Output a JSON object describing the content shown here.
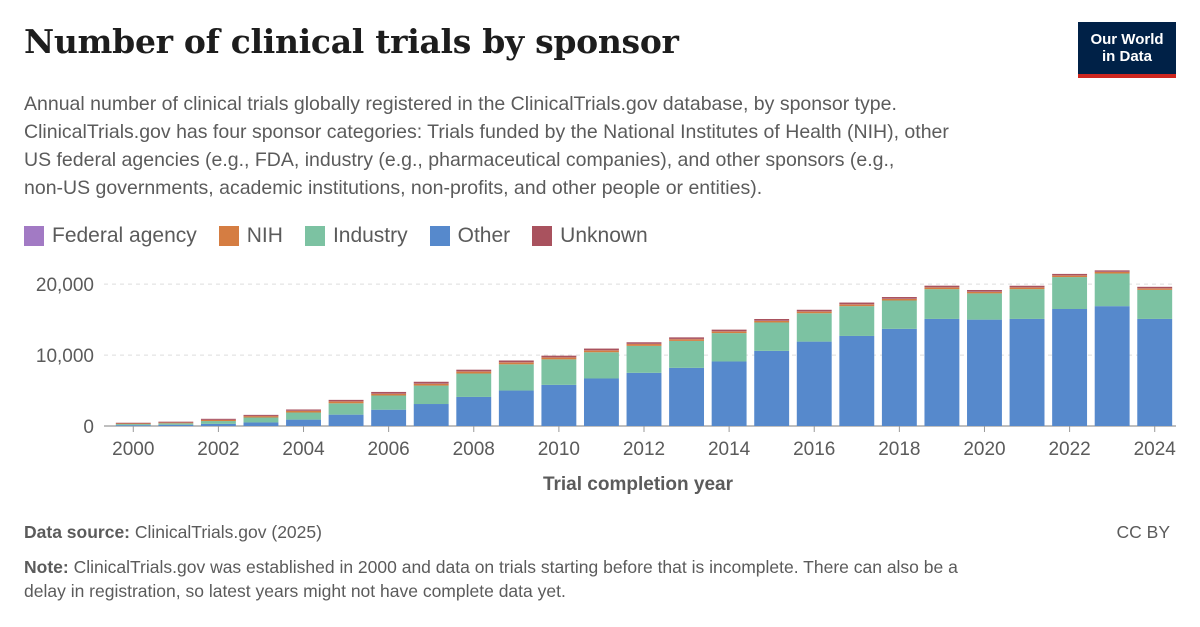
{
  "header": {
    "title": "Number of clinical trials by sponsor",
    "subtitle_lines": [
      "Annual number of clinical trials globally registered in the ClinicalTrials.gov database, by sponsor type.",
      "ClinicalTrials.gov has four sponsor categories: Trials funded by the National Institutes of Health (NIH), other",
      "US federal agencies (e.g., FDA, industry (e.g., pharmaceutical companies), and other sponsors (e.g.,",
      "non-US governments, academic institutions, non-profits, and other people or entities)."
    ]
  },
  "logo": {
    "line1": "Our World",
    "line2": "in Data"
  },
  "legend": [
    {
      "label": "Federal agency",
      "color": "#a27ac4"
    },
    {
      "label": "NIH",
      "color": "#d57d42"
    },
    {
      "label": "Industry",
      "color": "#7cc2a2"
    },
    {
      "label": "Other",
      "color": "#5689cc"
    },
    {
      "label": "Unknown",
      "color": "#a9525e"
    }
  ],
  "chart_data": {
    "type": "bar",
    "stacked": true,
    "xlabel": "Trial completion year",
    "ylabel": "",
    "ylim": [
      0,
      22000
    ],
    "y_ticks": [
      0,
      10000,
      20000
    ],
    "y_tick_labels": [
      "0",
      "10,000",
      "20,000"
    ],
    "x_tick_labels": [
      "2000",
      "2002",
      "2004",
      "2006",
      "2008",
      "2010",
      "2012",
      "2014",
      "2016",
      "2018",
      "2020",
      "2022",
      "2024"
    ],
    "categories": [
      2000,
      2001,
      2002,
      2003,
      2004,
      2005,
      2006,
      2007,
      2008,
      2009,
      2010,
      2011,
      2012,
      2013,
      2014,
      2015,
      2016,
      2017,
      2018,
      2019,
      2020,
      2021,
      2022,
      2023,
      2024
    ],
    "series": [
      {
        "name": "Other",
        "color": "#5689cc",
        "values": [
          120,
          180,
          300,
          500,
          900,
          1600,
          2300,
          3100,
          4100,
          5000,
          5800,
          6700,
          7500,
          8200,
          9100,
          10600,
          11900,
          12700,
          13700,
          15100,
          15000,
          15100,
          16500,
          16900,
          15100
        ]
      },
      {
        "name": "Industry",
        "color": "#7cc2a2",
        "values": [
          150,
          200,
          400,
          700,
          1000,
          1600,
          2000,
          2600,
          3300,
          3700,
          3600,
          3700,
          3800,
          3800,
          4000,
          4000,
          4000,
          4200,
          4000,
          4200,
          3700,
          4200,
          4500,
          4600,
          4100
        ]
      },
      {
        "name": "NIH",
        "color": "#d57d42",
        "values": [
          80,
          100,
          150,
          200,
          230,
          260,
          260,
          270,
          280,
          280,
          260,
          260,
          260,
          250,
          240,
          240,
          240,
          250,
          240,
          240,
          230,
          230,
          220,
          220,
          200
        ]
      },
      {
        "name": "Federal agency",
        "color": "#a27ac4",
        "values": [
          10,
          10,
          15,
          20,
          20,
          25,
          25,
          30,
          30,
          30,
          30,
          30,
          30,
          30,
          30,
          30,
          30,
          30,
          30,
          30,
          30,
          30,
          30,
          30,
          30
        ]
      },
      {
        "name": "Unknown",
        "color": "#a9525e",
        "values": [
          100,
          120,
          150,
          150,
          180,
          200,
          220,
          240,
          230,
          230,
          230,
          230,
          220,
          220,
          220,
          220,
          220,
          230,
          220,
          220,
          220,
          220,
          200,
          200,
          200
        ]
      }
    ]
  },
  "footer": {
    "source_label": "Data source:",
    "source_text": "ClinicalTrials.gov (2025)",
    "license": "CC BY",
    "note_label": "Note:",
    "note_line1": "ClinicalTrials.gov was established in 2000 and data on trials starting before that is incomplete. There can also be a",
    "note_line2": "delay in registration, so latest years might not have complete data yet."
  }
}
